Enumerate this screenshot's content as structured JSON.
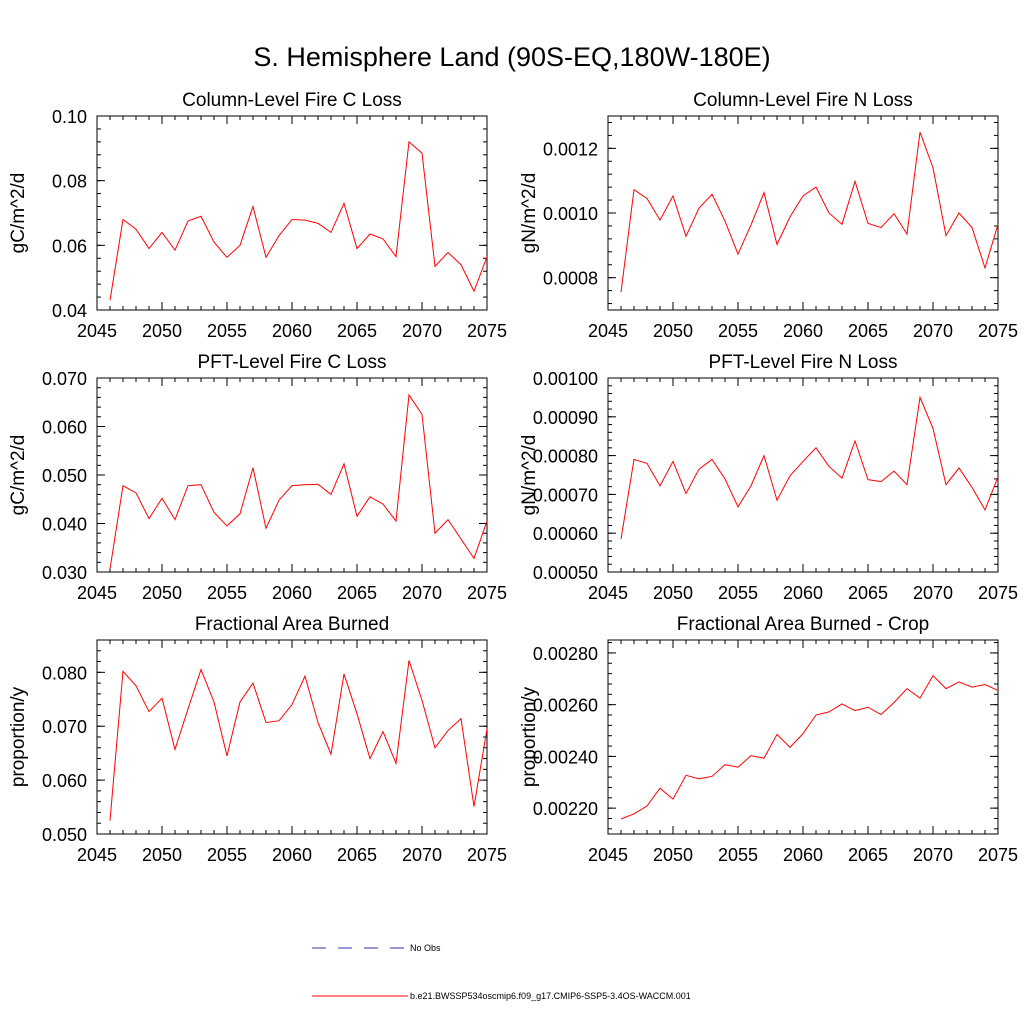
{
  "figure_title": "S. Hemisphere Land (90S-EQ,180W-180E)",
  "colors": {
    "series": "#ff0000",
    "obs": "#3333aa",
    "axis": "#000000"
  },
  "legend": {
    "obs_label": "No Obs",
    "series_label": "b.e21.BWSSP534oscmip6.f09_g17.CMIP6-SSP5-3.4OS-WACCM.001"
  },
  "chart_data": [
    {
      "type": "line",
      "title": "Column-Level Fire C Loss",
      "xlabel": "",
      "ylabel": "gC/m^2/d",
      "xlim": [
        2045,
        2075
      ],
      "ylim": [
        0.04,
        0.1
      ],
      "xticks": [
        2045,
        2050,
        2055,
        2060,
        2065,
        2070,
        2075
      ],
      "xtick_labels": [
        "2045",
        "2050",
        "2055",
        "2060",
        "2065",
        "2070",
        "2075"
      ],
      "yticks": [
        0.04,
        0.06,
        0.08,
        0.1
      ],
      "ytick_labels": [
        "0.04",
        "0.06",
        "0.08",
        "0.10"
      ],
      "x": [
        2046,
        2047,
        2048,
        2049,
        2050,
        2051,
        2052,
        2053,
        2054,
        2055,
        2056,
        2057,
        2058,
        2059,
        2060,
        2061,
        2062,
        2063,
        2064,
        2065,
        2066,
        2067,
        2068,
        2069,
        2070,
        2071,
        2072,
        2073,
        2074,
        2075
      ],
      "series": [
        {
          "name": "b.e21.BWSSP534oscmip6.f09_g17.CMIP6-SSP5-3.4OS-WACCM.001",
          "values": [
            0.043,
            0.068,
            0.065,
            0.059,
            0.064,
            0.0585,
            0.0675,
            0.069,
            0.061,
            0.0563,
            0.06,
            0.072,
            0.0563,
            0.063,
            0.068,
            0.0678,
            0.0668,
            0.064,
            0.073,
            0.059,
            0.0635,
            0.062,
            0.0565,
            0.092,
            0.0885,
            0.0535,
            0.0578,
            0.054,
            0.0458,
            0.0565
          ]
        }
      ]
    },
    {
      "type": "line",
      "title": "Column-Level Fire N Loss",
      "xlabel": "",
      "ylabel": "gN/m^2/d",
      "xlim": [
        2045,
        2075
      ],
      "ylim": [
        0.0007,
        0.0013
      ],
      "xticks": [
        2045,
        2050,
        2055,
        2060,
        2065,
        2070,
        2075
      ],
      "xtick_labels": [
        "2045",
        "2050",
        "2055",
        "2060",
        "2065",
        "2070",
        "2075"
      ],
      "yticks": [
        0.0008,
        0.001,
        0.0012
      ],
      "ytick_labels": [
        "0.0008",
        "0.0010",
        "0.0012"
      ],
      "x": [
        2046,
        2047,
        2048,
        2049,
        2050,
        2051,
        2052,
        2053,
        2054,
        2055,
        2056,
        2057,
        2058,
        2059,
        2060,
        2061,
        2062,
        2063,
        2064,
        2065,
        2066,
        2067,
        2068,
        2069,
        2070,
        2071,
        2072,
        2073,
        2074,
        2075
      ],
      "series": [
        {
          "name": "b.e21.BWSSP534oscmip6.f09_g17.CMIP6-SSP5-3.4OS-WACCM.001",
          "values": [
            0.000755,
            0.001072,
            0.001045,
            0.000978,
            0.001053,
            0.000928,
            0.001015,
            0.001058,
            0.000975,
            0.000873,
            0.000963,
            0.001063,
            0.000903,
            0.000988,
            0.001053,
            0.00108,
            0.001,
            0.000965,
            0.001098,
            0.000968,
            0.000955,
            0.000998,
            0.000935,
            0.00125,
            0.00114,
            0.00093,
            0.001,
            0.000955,
            0.00083,
            0.000965
          ]
        }
      ]
    },
    {
      "type": "line",
      "title": "PFT-Level Fire C Loss",
      "xlabel": "",
      "ylabel": "gC/m^2/d",
      "xlim": [
        2045,
        2075
      ],
      "ylim": [
        0.03,
        0.07
      ],
      "xticks": [
        2045,
        2050,
        2055,
        2060,
        2065,
        2070,
        2075
      ],
      "xtick_labels": [
        "2045",
        "2050",
        "2055",
        "2060",
        "2065",
        "2070",
        "2075"
      ],
      "yticks": [
        0.03,
        0.04,
        0.05,
        0.06,
        0.07
      ],
      "ytick_labels": [
        "0.030",
        "0.040",
        "0.050",
        "0.060",
        "0.070"
      ],
      "x": [
        2046,
        2047,
        2048,
        2049,
        2050,
        2051,
        2052,
        2053,
        2054,
        2055,
        2056,
        2057,
        2058,
        2059,
        2060,
        2061,
        2062,
        2063,
        2064,
        2065,
        2066,
        2067,
        2068,
        2069,
        2070,
        2071,
        2072,
        2073,
        2074,
        2075
      ],
      "series": [
        {
          "name": "b.e21.BWSSP534oscmip6.f09_g17.CMIP6-SSP5-3.4OS-WACCM.001",
          "values": [
            0.0306,
            0.0478,
            0.0463,
            0.041,
            0.0452,
            0.0408,
            0.0478,
            0.048,
            0.0423,
            0.0395,
            0.042,
            0.0515,
            0.039,
            0.0448,
            0.0478,
            0.048,
            0.0481,
            0.046,
            0.0523,
            0.0415,
            0.0455,
            0.044,
            0.0405,
            0.0665,
            0.0625,
            0.038,
            0.0408,
            0.0368,
            0.0328,
            0.0405
          ]
        }
      ]
    },
    {
      "type": "line",
      "title": "PFT-Level Fire N Loss",
      "xlabel": "",
      "ylabel": "gN/m^2/d",
      "xlim": [
        2045,
        2075
      ],
      "ylim": [
        0.0005,
        0.001
      ],
      "xticks": [
        2045,
        2050,
        2055,
        2060,
        2065,
        2070,
        2075
      ],
      "xtick_labels": [
        "2045",
        "2050",
        "2055",
        "2060",
        "2065",
        "2070",
        "2075"
      ],
      "yticks": [
        0.0005,
        0.0006,
        0.0007,
        0.0008,
        0.0009,
        0.001
      ],
      "ytick_labels": [
        "0.00050",
        "0.00060",
        "0.00070",
        "0.00080",
        "0.00090",
        "0.00100"
      ],
      "x": [
        2046,
        2047,
        2048,
        2049,
        2050,
        2051,
        2052,
        2053,
        2054,
        2055,
        2056,
        2057,
        2058,
        2059,
        2060,
        2061,
        2062,
        2063,
        2064,
        2065,
        2066,
        2067,
        2068,
        2069,
        2070,
        2071,
        2072,
        2073,
        2074,
        2075
      ],
      "series": [
        {
          "name": "b.e21.BWSSP534oscmip6.f09_g17.CMIP6-SSP5-3.4OS-WACCM.001",
          "values": [
            0.000585,
            0.00079,
            0.00078,
            0.000722,
            0.000785,
            0.000702,
            0.000765,
            0.00079,
            0.00074,
            0.000668,
            0.000722,
            0.0008,
            0.000685,
            0.000748,
            0.000785,
            0.00082,
            0.000772,
            0.000742,
            0.000838,
            0.000738,
            0.000733,
            0.00076,
            0.000725,
            0.00095,
            0.00087,
            0.000725,
            0.000768,
            0.000718,
            0.00066,
            0.000745
          ]
        }
      ]
    },
    {
      "type": "line",
      "title": "Fractional Area Burned",
      "xlabel": "",
      "ylabel": "proportion/y",
      "xlim": [
        2045,
        2075
      ],
      "ylim": [
        0.05,
        0.086
      ],
      "xticks": [
        2045,
        2050,
        2055,
        2060,
        2065,
        2070,
        2075
      ],
      "xtick_labels": [
        "2045",
        "2050",
        "2055",
        "2060",
        "2065",
        "2070",
        "2075"
      ],
      "yticks": [
        0.05,
        0.06,
        0.07,
        0.08
      ],
      "ytick_labels": [
        "0.050",
        "0.060",
        "0.070",
        "0.080"
      ],
      "x": [
        2046,
        2047,
        2048,
        2049,
        2050,
        2051,
        2052,
        2053,
        2054,
        2055,
        2056,
        2057,
        2058,
        2059,
        2060,
        2061,
        2062,
        2063,
        2064,
        2065,
        2066,
        2067,
        2068,
        2069,
        2070,
        2071,
        2072,
        2073,
        2074,
        2075
      ],
      "series": [
        {
          "name": "b.e21.BWSSP534oscmip6.f09_g17.CMIP6-SSP5-3.4OS-WACCM.001",
          "values": [
            0.0525,
            0.0802,
            0.0775,
            0.0727,
            0.0752,
            0.0657,
            0.0732,
            0.0805,
            0.0745,
            0.0645,
            0.0745,
            0.078,
            0.0707,
            0.071,
            0.074,
            0.0793,
            0.0707,
            0.0648,
            0.0797,
            0.0723,
            0.064,
            0.069,
            0.0631,
            0.0822,
            0.0748,
            0.066,
            0.0692,
            0.0714,
            0.0551,
            0.0695
          ]
        }
      ]
    },
    {
      "type": "line",
      "title": "Fractional Area Burned - Crop",
      "xlabel": "",
      "ylabel": "proportion/y",
      "xlim": [
        2045,
        2075
      ],
      "ylim": [
        0.0021,
        0.00285
      ],
      "xticks": [
        2045,
        2050,
        2055,
        2060,
        2065,
        2070,
        2075
      ],
      "xtick_labels": [
        "2045",
        "2050",
        "2055",
        "2060",
        "2065",
        "2070",
        "2075"
      ],
      "yticks": [
        0.0022,
        0.0024,
        0.0026,
        0.0028
      ],
      "ytick_labels": [
        "0.00220",
        "0.00240",
        "0.00260",
        "0.00280"
      ],
      "x": [
        2046,
        2047,
        2048,
        2049,
        2050,
        2051,
        2052,
        2053,
        2054,
        2055,
        2056,
        2057,
        2058,
        2059,
        2060,
        2061,
        2062,
        2063,
        2064,
        2065,
        2066,
        2067,
        2068,
        2069,
        2070,
        2071,
        2072,
        2073,
        2074,
        2075
      ],
      "series": [
        {
          "name": "b.e21.BWSSP534oscmip6.f09_g17.CMIP6-SSP5-3.4OS-WACCM.001",
          "values": [
            0.002158,
            0.002178,
            0.002208,
            0.002277,
            0.002235,
            0.002327,
            0.002313,
            0.002323,
            0.002368,
            0.002358,
            0.002403,
            0.002393,
            0.002485,
            0.002435,
            0.002488,
            0.00256,
            0.002572,
            0.002603,
            0.002577,
            0.00259,
            0.002562,
            0.002608,
            0.002662,
            0.002625,
            0.002712,
            0.002662,
            0.002688,
            0.002668,
            0.002678,
            0.002655
          ]
        }
      ]
    }
  ]
}
